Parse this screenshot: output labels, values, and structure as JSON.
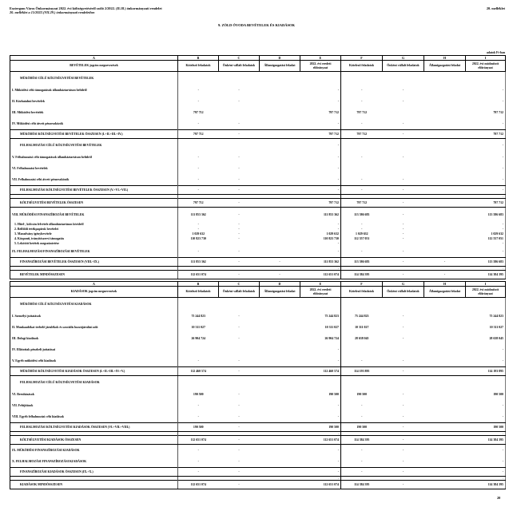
{
  "header": {
    "line1": "Esztergom Város Önkormányzat 2022. évi költségvetéséről szóló 2/2022. (II.18.) önkormányzati rendelet",
    "line2": "20. melléklet a 15/2022.(VII.29.) önkormányzati rendelethez",
    "annex": "20. melléklet",
    "title": "9. ZÖLD ÓVODA BEVÉTELEK ÉS KIADÁSOK",
    "unit": "adatok Ft-ban"
  },
  "columns": {
    "letters": [
      "A",
      "B",
      "C",
      "D",
      "E",
      "F",
      "G",
      "H",
      "I"
    ],
    "heads": [
      "Kötelező feladatok",
      "Önként vállalt feladatok",
      "Államigazgatási feladat",
      "2022. évi eredeti előirányzat",
      "Kötelező feladatok",
      "Önként vállalt feladatok",
      "Államigazgatási feladat",
      "2022. évi módosított előirányzat"
    ]
  },
  "revenue": {
    "head": "BEVÉTELEK jogcím megnevezések",
    "rows": [
      {
        "kind": "sec",
        "label": "MŰKÖDÉSI CÉLÚ KÖLTSÉGVETÉSI BEVÉTELEK",
        "v": [
          "",
          "",
          "",
          "",
          "",
          "",
          "",
          ""
        ]
      },
      {
        "kind": "item",
        "label": "I.  Működési célú támogatások államháztartáson belülről",
        "v": [
          "-",
          "-",
          "",
          "-",
          "-",
          "-",
          "",
          "-"
        ]
      },
      {
        "kind": "item",
        "label": "II.  Közhatalmi bevételek",
        "v": [
          "-",
          "-",
          "",
          "-",
          "-",
          "-",
          "",
          "-"
        ]
      },
      {
        "kind": "item",
        "label": "III.  Működési bevételek",
        "v": [
          "797 712",
          "",
          "",
          "797 712",
          "797 712",
          "",
          "",
          "797 712"
        ]
      },
      {
        "kind": "item",
        "label": "IV.  Működési célú átvett pénzeszközök",
        "v": [
          "-",
          "-",
          "",
          "-",
          "-",
          "-",
          "",
          "-"
        ]
      },
      {
        "kind": "total",
        "label": "MŰKÖDÉSI KÖLTSÉGVETÉSI BEVÉTELEK ÖSSZESEN (I.+II.+III.+IV.)",
        "v": [
          "797 712",
          "-",
          "",
          "797 712",
          "797 712",
          "-",
          "",
          "797 712"
        ]
      },
      {
        "kind": "sec",
        "label": "FELHALMOZÁSI CÉLÚ KÖLTSÉGVETÉSI BEVÉTELEK",
        "v": [
          "",
          "",
          "",
          "-",
          "",
          "",
          "",
          "-"
        ]
      },
      {
        "kind": "item",
        "label": "V.  Felhalmozási célú támogatások államháztartáson belülről",
        "v": [
          "-",
          "-",
          "",
          "-",
          "-",
          "-",
          "",
          "-"
        ]
      },
      {
        "kind": "item",
        "label": "VI.  Felhalmozási bevételek",
        "v": [
          "-",
          "-",
          "",
          "-",
          "",
          "",
          "",
          "-"
        ]
      },
      {
        "kind": "item",
        "label": "VII.  Felhalmozási célú átvett pénzeszközök",
        "v": [
          "-",
          "-",
          "",
          "-",
          "-",
          "-",
          "",
          "-"
        ]
      },
      {
        "kind": "total",
        "label": "FELHALMOZÁSI KÖLTSÉGVETÉSI BEVÉTELEK ÖSSZESEN (V.+VI.+VII.)",
        "v": [
          "-",
          "-",
          "",
          "-",
          "-",
          "-",
          "",
          "-"
        ]
      },
      {
        "kind": "blank",
        "label": "",
        "v": [
          "",
          "",
          "",
          "",
          "",
          "",
          "",
          "-"
        ]
      },
      {
        "kind": "total",
        "label": "KÖLTSÉGVETÉSI BEVÉTELEK ÖSSZESEN",
        "v": [
          "797 712",
          "-",
          "",
          "797 712",
          "797 712",
          "-",
          "",
          "797 712"
        ]
      },
      {
        "kind": "big",
        "label": "VIII.  MŰKÖDÉSI FINANSZÍROZÁSI BEVÉTELEK",
        "v": [
          "111 853 362",
          "-",
          "",
          "111 853 362",
          "113 586 683",
          "-",
          "",
          "113 586 683"
        ]
      },
      {
        "kind": "sub",
        "label": "1.  Hitel-, kölcsön felvétele államháztartáson kívülről",
        "v": [
          "-",
          "-",
          "",
          "-",
          "-",
          "-",
          "",
          "-"
        ]
      },
      {
        "kind": "sub",
        "label": "2.  Belföldi értékpapírok bevételei",
        "v": [
          "-",
          "-",
          "",
          "-",
          "-",
          "-",
          "",
          "-"
        ]
      },
      {
        "kind": "sub",
        "label": "3.  Maradvány igénybevétele",
        "v": [
          "1 029 632",
          "-",
          "",
          "1 029 632",
          "1 029 632",
          "-",
          "",
          "1 029 632"
        ]
      },
      {
        "kind": "sub",
        "label": "4.  Központi, irányítószervi támogatás",
        "v": [
          "110 823 730",
          "-",
          "",
          "110 823 730",
          "112 557 051",
          "-",
          "",
          "112 557 051"
        ]
      },
      {
        "kind": "sub",
        "label": "5.  Lekötött betétek megszüntetése",
        "v": [
          "",
          "",
          "",
          "-",
          "",
          "",
          "",
          "-"
        ]
      },
      {
        "kind": "item",
        "label": "IX.  FELHALMOZÁSI FINANSZÍROZÁSI BEVÉTELEK",
        "v": [
          "-",
          "-",
          "",
          "-",
          "-",
          "-",
          "",
          "-"
        ]
      },
      {
        "kind": "total",
        "label": "FINANSZÍROZÁSI BEVÉTELEK ÖSSZESEN (VIII.+IX.)",
        "v": [
          "111 853 362",
          "-",
          "-",
          "111 853 362",
          "113 586 683",
          "-",
          "-",
          "113 586 683"
        ]
      },
      {
        "kind": "blank",
        "label": "",
        "v": [
          "",
          "",
          "",
          "-",
          "",
          "",
          "",
          "-"
        ]
      },
      {
        "kind": "total",
        "label": "BEVÉTELEK MINDÖSSZESEN",
        "v": [
          "112 651 074",
          "-",
          "-",
          "112 651 074",
          "114 384 395",
          "-",
          "-",
          "114 384 395"
        ]
      }
    ]
  },
  "expenditure": {
    "head": "KIADÁSOK jogcím megnevezések",
    "rows": [
      {
        "kind": "sec",
        "label": "MŰKÖDÉSI CÉLÚ KÖLTSÉGVETÉSI KIADÁSOK",
        "v": [
          "",
          "",
          "",
          "",
          "",
          "",
          "",
          ""
        ]
      },
      {
        "kind": "item",
        "label": "I.  Személyi juttatások",
        "v": [
          "75 244 823",
          "-",
          "",
          "75 244 823",
          "75 244 823",
          "-",
          "",
          "75 244 823"
        ]
      },
      {
        "kind": "item",
        "label": "II.  Munkaadókat terhelő járulékok és szociális hozzájárulási adó",
        "v": [
          "10 311 027",
          "-",
          "",
          "10 311 027",
          "10 311 027",
          "-",
          "",
          "10 311 027"
        ]
      },
      {
        "kind": "item",
        "label": "III.  Dologi kiadások",
        "v": [
          "26 904 724",
          "-",
          "",
          "26 904 724",
          "28 638 045",
          "-",
          "",
          "28 638 045"
        ]
      },
      {
        "kind": "item",
        "label": "IV.  Ellátottak pénzbeli juttatásai",
        "v": [
          "",
          "",
          "",
          "-",
          "",
          "",
          "",
          "-"
        ]
      },
      {
        "kind": "item",
        "label": "V.  Egyéb működési célú kiadások",
        "v": [
          "-",
          "-",
          "",
          "-",
          "-",
          "-",
          "",
          "-"
        ]
      },
      {
        "kind": "total",
        "label": "MŰKÖDÉSI KÖLTSÉGVETÉSI KIADÁSOK ÖSSZESEN (I.+II.+III.+IV.+V.)",
        "v": [
          "112 460 574",
          "-",
          "",
          "112 460 574",
          "114 193 895",
          "-",
          "",
          "114 193 895"
        ]
      },
      {
        "kind": "sec",
        "label": "FELHALMOZÁSI CÉLÚ KÖLTSÉGVETÉSI KIADÁSOK",
        "v": [
          "",
          "",
          "",
          "",
          "",
          "",
          "",
          ""
        ]
      },
      {
        "kind": "item",
        "label": "VI.  Beruházások",
        "v": [
          "190 500",
          "-",
          "",
          "190 500",
          "190 500",
          "-",
          "",
          "190 500"
        ]
      },
      {
        "kind": "item",
        "label": "VII.  Felújítások",
        "v": [
          "-",
          "-",
          "",
          "-",
          "-",
          "-",
          "",
          "-"
        ]
      },
      {
        "kind": "item",
        "label": "VIII.  Egyéb felhalmozási célú kiadások",
        "v": [
          "-",
          "-",
          "",
          "-",
          "-",
          "-",
          "",
          "-"
        ]
      },
      {
        "kind": "total",
        "label": "FELHALMOZÁSI KÖLTSÉGVETÉSI KIADÁSOK ÖSSZESEN (VI.+VII.+VIII.)",
        "v": [
          "190 500",
          "-",
          "",
          "190 500",
          "190 500",
          "-",
          "",
          "190 500"
        ]
      },
      {
        "kind": "blank",
        "label": "",
        "v": [
          "",
          "",
          "",
          "-",
          "",
          "",
          "",
          "-"
        ]
      },
      {
        "kind": "total",
        "label": "KÖLTSÉGVETÉSI KIADÁSOK ÖSSZESEN",
        "v": [
          "112 651 074",
          "-",
          "",
          "112 651 074",
          "114 384 395",
          "-",
          "",
          "114 384 395"
        ]
      },
      {
        "kind": "item",
        "label": "IX.  MŰKÖDÉSI FINANSZÍROZÁSI KIADÁSOK",
        "v": [
          "-",
          "-",
          "",
          "-",
          "-",
          "-",
          "",
          "-"
        ]
      },
      {
        "kind": "item",
        "label": "X.  FELHALMOZÁSI FINANSZÍROZÁSI KIADÁSOK",
        "v": [
          "-",
          "-",
          "",
          "-",
          "-",
          "-",
          "",
          "-"
        ]
      },
      {
        "kind": "total",
        "label": "FINANSZÍROZÁSI KIADÁSOK ÖSSZESEN (IX.+X.)",
        "v": [
          "-",
          "-",
          "",
          "-",
          "-",
          "-",
          "",
          "-"
        ]
      },
      {
        "kind": "blank",
        "label": "",
        "v": [
          "",
          "",
          "",
          "-",
          "",
          "",
          "",
          "-"
        ]
      },
      {
        "kind": "total",
        "label": "KIADÁSOK MINDÖSSZESEN",
        "v": [
          "112 651 074",
          "-",
          "",
          "112 651 074",
          "114 384 395",
          "-",
          "",
          "114 384 395"
        ]
      }
    ]
  },
  "footer": {
    "page": "20"
  }
}
